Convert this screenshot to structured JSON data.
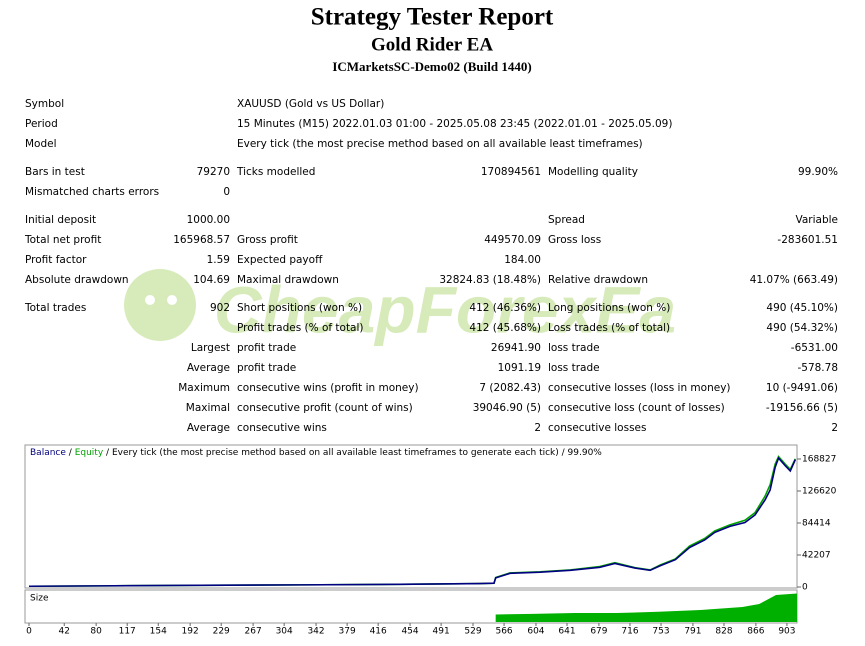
{
  "header": {
    "title": "Strategy Tester Report",
    "subtitle": "Gold Rider EA",
    "server": "ICMarketsSC-Demo02 (Build 1440)"
  },
  "watermark": "CheapForexEa",
  "report": {
    "sections": [
      [
        [
          "Symbol",
          null,
          "XAUUSD (Gold vs US Dollar)",
          null,
          null,
          null
        ],
        [
          "Period",
          null,
          "15 Minutes (M15) 2022.01.03 01:00 - 2025.05.08 23:45 (2022.01.01 - 2025.05.09)",
          null,
          null,
          null
        ],
        [
          "Model",
          null,
          "Every tick (the most precise method based on all available least timeframes)",
          null,
          null,
          null
        ]
      ],
      [
        [
          "Bars in test",
          "79270",
          "Ticks modelled",
          "170894561",
          "Modelling quality",
          "99.90%"
        ],
        [
          "Mismatched charts errors",
          "0",
          null,
          null,
          null,
          null
        ]
      ],
      [
        [
          "Initial deposit",
          "1000.00",
          null,
          null,
          "Spread",
          "Variable"
        ],
        [
          "Total net profit",
          "165968.57",
          "Gross profit",
          "449570.09",
          "Gross loss",
          "-283601.51"
        ],
        [
          "Profit factor",
          "1.59",
          "Expected payoff",
          "184.00",
          null,
          null
        ],
        [
          "Absolute drawdown",
          "104.69",
          "Maximal drawdown",
          "32824.83 (18.48%)",
          "Relative drawdown",
          "41.07% (663.49)"
        ]
      ],
      [
        [
          "Total trades",
          "902",
          "Short positions (won %)",
          "412 (46.36%)",
          "Long positions (won %)",
          "490 (45.10%)"
        ],
        [
          null,
          null,
          "Profit trades (% of total)",
          "412 (45.68%)",
          "Loss trades (% of total)",
          "490 (54.32%)"
        ],
        [
          null,
          "Largest",
          "profit trade",
          "26941.90",
          "loss trade",
          "-6531.00"
        ],
        [
          null,
          "Average",
          "profit trade",
          "1091.19",
          "loss trade",
          "-578.78"
        ],
        [
          null,
          "Maximum",
          "consecutive wins (profit in money)",
          "7 (2082.43)",
          "consecutive losses (loss in money)",
          "10 (-9491.06)"
        ],
        [
          null,
          "Maximal",
          "consecutive profit (count of wins)",
          "39046.90 (5)",
          "consecutive loss (count of losses)",
          "-19156.66 (5)"
        ],
        [
          null,
          "Average",
          "consecutive wins",
          "2",
          "consecutive losses",
          "2"
        ]
      ]
    ]
  },
  "chart_data": {
    "type": "line",
    "x": [
      0,
      85,
      204,
      323,
      442,
      537,
      554,
      556,
      573,
      609,
      645,
      680,
      698,
      722,
      740,
      752,
      770,
      787,
      805,
      817,
      835,
      853,
      865,
      877,
      883,
      889,
      893,
      901,
      907,
      913
    ],
    "series": [
      {
        "name": "Balance",
        "color": "#000080",
        "values": [
          1000,
          1500,
          2200,
          2800,
          3500,
          4500,
          5000,
          12000,
          18000,
          19500,
          22000,
          26000,
          31000,
          25000,
          22000,
          28000,
          36000,
          52000,
          62000,
          72000,
          80000,
          85000,
          95000,
          115000,
          128000,
          158000,
          170000,
          160000,
          153000,
          168000
        ]
      },
      {
        "name": "Equity",
        "color": "#00a000",
        "values": [
          1000,
          1500,
          2200,
          2800,
          3500,
          4500,
          5000,
          12500,
          18500,
          20000,
          22500,
          27000,
          32000,
          25500,
          22500,
          29000,
          37000,
          54000,
          64000,
          74000,
          82000,
          88000,
          98000,
          120000,
          135000,
          162000,
          172000,
          162000,
          155000,
          169000
        ]
      }
    ],
    "legend_note": "/ Every tick (the most precise method based on all available least timeframes to generate each tick) / 99.90%",
    "xlim": [
      0,
      915
    ],
    "xticks": [
      0,
      42,
      80,
      117,
      154,
      192,
      229,
      267,
      304,
      342,
      379,
      416,
      454,
      491,
      529,
      566,
      604,
      641,
      679,
      716,
      753,
      791,
      828,
      866,
      903
    ],
    "ylim": [
      0,
      187294
    ],
    "yticks": [
      0,
      42207,
      84414,
      126620,
      168827
    ],
    "size": {
      "name": "Size",
      "color": "#00b000",
      "x": [
        556,
        600,
        650,
        700,
        750,
        800,
        850,
        870,
        880,
        890,
        915
      ],
      "values": [
        0.25,
        0.27,
        0.3,
        0.3,
        0.34,
        0.4,
        0.5,
        0.6,
        0.75,
        0.9,
        0.95
      ],
      "ylim": [
        0,
        1
      ]
    }
  }
}
